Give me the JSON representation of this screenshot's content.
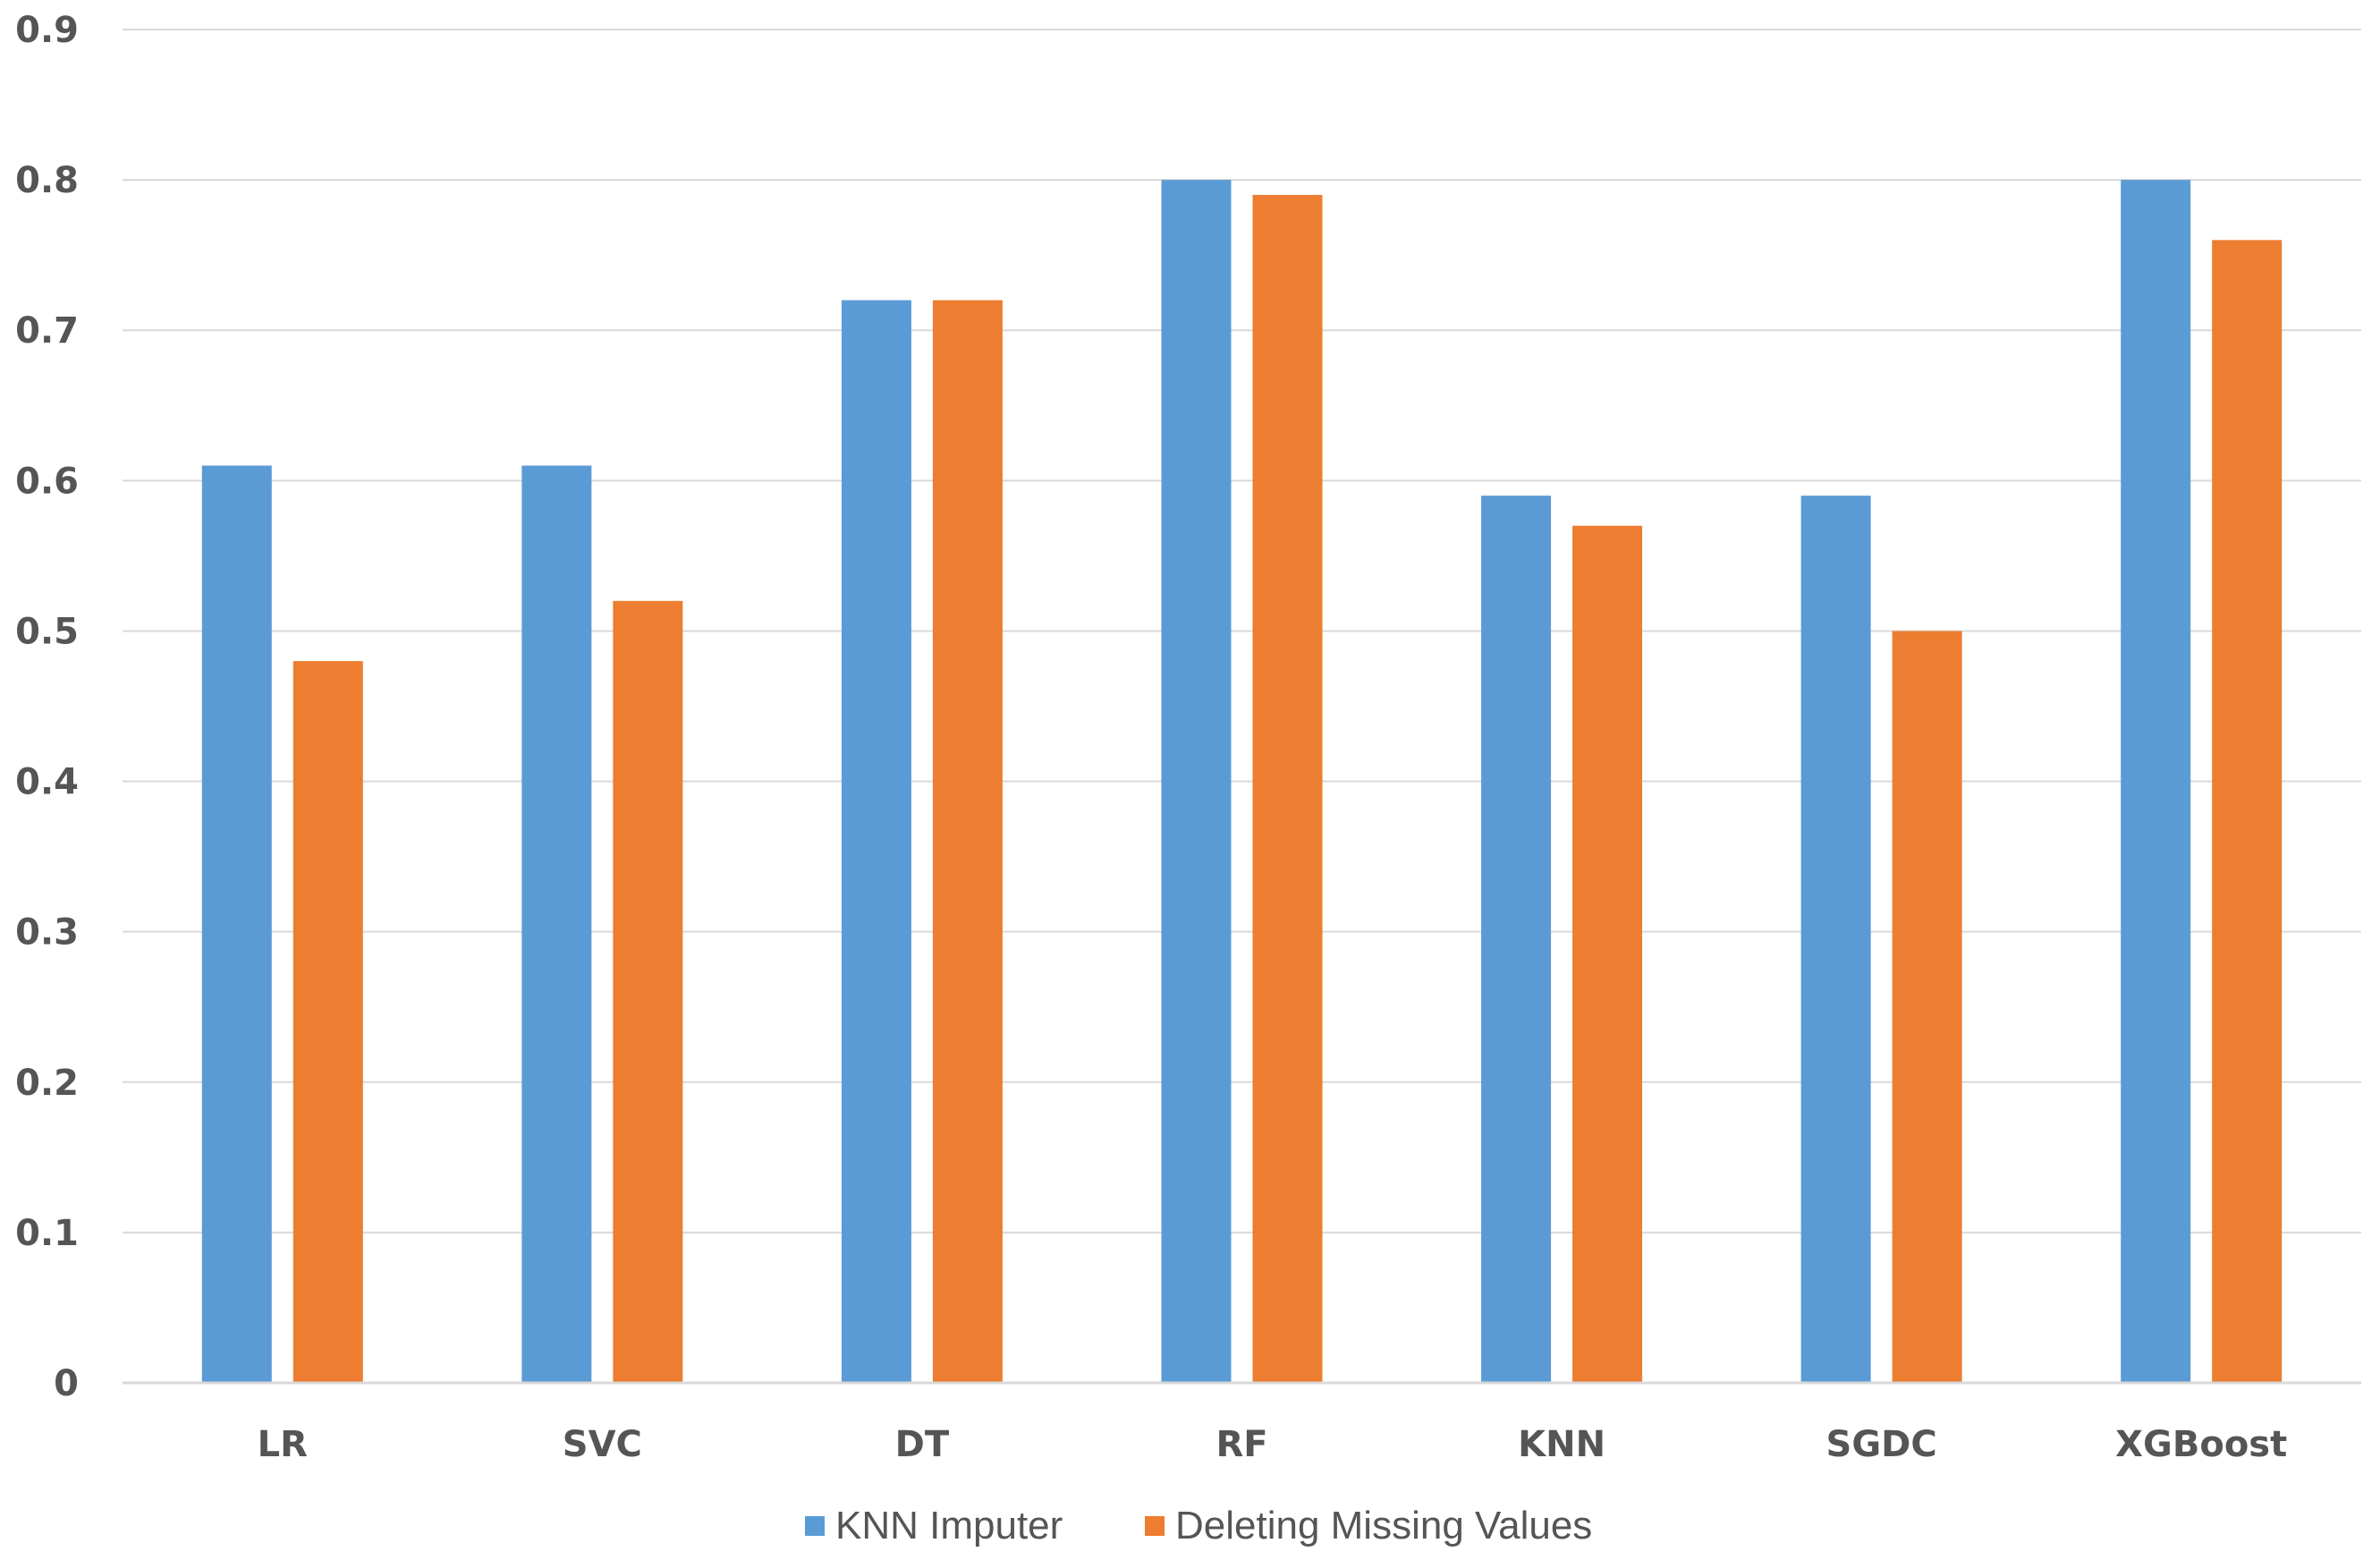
{
  "chart_data": {
    "type": "bar",
    "title": "",
    "xlabel": "",
    "ylabel": "",
    "ylim": [
      0,
      0.9
    ],
    "yticks": [
      "0",
      "0.1",
      "0.2",
      "0.3",
      "0.4",
      "0.5",
      "0.6",
      "0.7",
      "0.8",
      "0.9"
    ],
    "grid": true,
    "legend_position": "bottom-center",
    "categories": [
      "LR",
      "SVC",
      "DT",
      "RF",
      "KNN",
      "SGDC",
      "XGBoost"
    ],
    "series": [
      {
        "name": "KNN Imputer",
        "color": "#5B9BD5",
        "values": [
          0.61,
          0.61,
          0.72,
          0.8,
          0.59,
          0.59,
          0.8
        ]
      },
      {
        "name": "Deleting Missing Values",
        "color": "#ED7D31",
        "values": [
          0.48,
          0.52,
          0.72,
          0.79,
          0.57,
          0.5,
          0.76
        ]
      }
    ]
  }
}
